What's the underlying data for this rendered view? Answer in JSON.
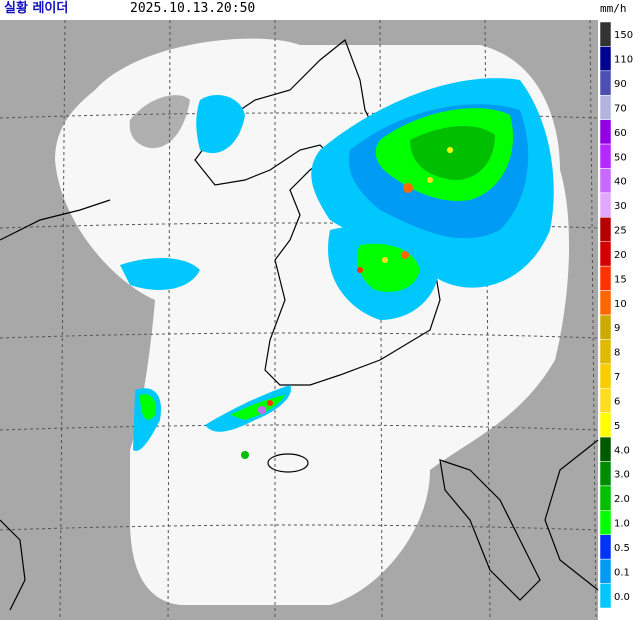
{
  "header": {
    "title": "실황 레이더",
    "timestamp": "2025.10.13.20:50"
  },
  "legend": {
    "unit": "mm/h",
    "items": [
      {
        "label": "150",
        "color": "#333333"
      },
      {
        "label": "110",
        "color": "#000390"
      },
      {
        "label": "90",
        "color": "#4c4eb1"
      },
      {
        "label": "70",
        "color": "#b3b4de"
      },
      {
        "label": "60",
        "color": "#9300e4"
      },
      {
        "label": "50",
        "color": "#b329ff"
      },
      {
        "label": "40",
        "color": "#c969ff"
      },
      {
        "label": "30",
        "color": "#e0a9ff"
      },
      {
        "label": "25",
        "color": "#b40000"
      },
      {
        "label": "20",
        "color": "#d20000"
      },
      {
        "label": "15",
        "color": "#ff3200"
      },
      {
        "label": "10",
        "color": "#ff6600"
      },
      {
        "label": "9",
        "color": "#ccaa00"
      },
      {
        "label": "8",
        "color": "#e0b900"
      },
      {
        "label": "7",
        "color": "#f9cd00"
      },
      {
        "label": "6",
        "color": "#ffdc1f"
      },
      {
        "label": "5",
        "color": "#ffff00"
      },
      {
        "label": "4.0",
        "color": "#005a00"
      },
      {
        "label": "3.0",
        "color": "#008c00"
      },
      {
        "label": "2.0",
        "color": "#00be00"
      },
      {
        "label": "1.0",
        "color": "#00ff00"
      },
      {
        "label": "0.5",
        "color": "#0033f5"
      },
      {
        "label": "0.1",
        "color": "#009bf5"
      },
      {
        "label": "0.0",
        "color": "#00c8ff"
      }
    ]
  }
}
